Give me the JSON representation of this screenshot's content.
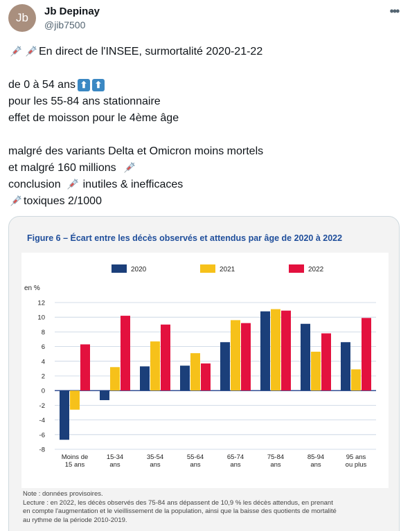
{
  "author": {
    "avatar_initials": "Jb",
    "name": "Jb Depinay",
    "handle": "@jib7500"
  },
  "tweet": {
    "line1": "En direct de l'INSEE, surmortalité 2020-21-22",
    "line2": "de 0 à 54 ans",
    "line3": "pour les 55-84 ans stationnaire",
    "line4": "effet de moisson pour le 4ème âge",
    "line5": "malgré des variants Delta et Omicron moins mortels",
    "line6": "et malgré 160 millions",
    "line7a": "conclusion",
    "line7b": "inutiles  & inefficaces",
    "line8": "toxiques 2/1000"
  },
  "figure": {
    "title": "Figure 6 – Écart entre les décès observés et attendus par âge de 2020 à 2022",
    "note": "Note : données provisoires.",
    "lecture1": "Lecture : en 2022, les décès observés des 75-84 ans dépassent de 10,9 % les décès attendus, en prenant",
    "lecture2": "en compte l'augmentation et le vieillissement de la population, ainsi que la baisse des quotients de mortalité",
    "lecture3": "au rythme de la période 2010-2019."
  },
  "colors": {
    "series_2020": "#1b3f7a",
    "series_2021": "#f6c11a",
    "series_2022": "#e3113e",
    "title_blue": "#1f4e9b",
    "arrow_blue": "#3b88c3"
  },
  "icons": [
    "syringe-icon",
    "up-arrow-icon",
    "more-icon"
  ],
  "chart_data": {
    "type": "bar",
    "ylabel": "en %",
    "ylim": [
      -8,
      12
    ],
    "yticks": [
      -8,
      -6,
      -4,
      -2,
      0,
      2,
      4,
      6,
      8,
      10,
      12
    ],
    "grid": true,
    "legend": "top",
    "categories": [
      [
        "Moins de",
        "15 ans"
      ],
      [
        "15-34",
        "ans"
      ],
      [
        "35-54",
        "ans"
      ],
      [
        "55-64",
        "ans"
      ],
      [
        "65-74",
        "ans"
      ],
      [
        "75-84",
        "ans"
      ],
      [
        "85-94",
        "ans"
      ],
      [
        "95 ans",
        "ou plus"
      ]
    ],
    "series": [
      {
        "name": "2020",
        "values": [
          -6.7,
          -1.3,
          3.3,
          3.4,
          6.6,
          10.8,
          9.1,
          6.6
        ]
      },
      {
        "name": "2021",
        "values": [
          -2.6,
          3.2,
          6.7,
          5.1,
          9.6,
          11.1,
          5.3,
          2.9
        ]
      },
      {
        "name": "2022",
        "values": [
          6.3,
          10.2,
          9.0,
          3.7,
          9.2,
          10.9,
          7.8,
          9.9
        ]
      }
    ]
  }
}
